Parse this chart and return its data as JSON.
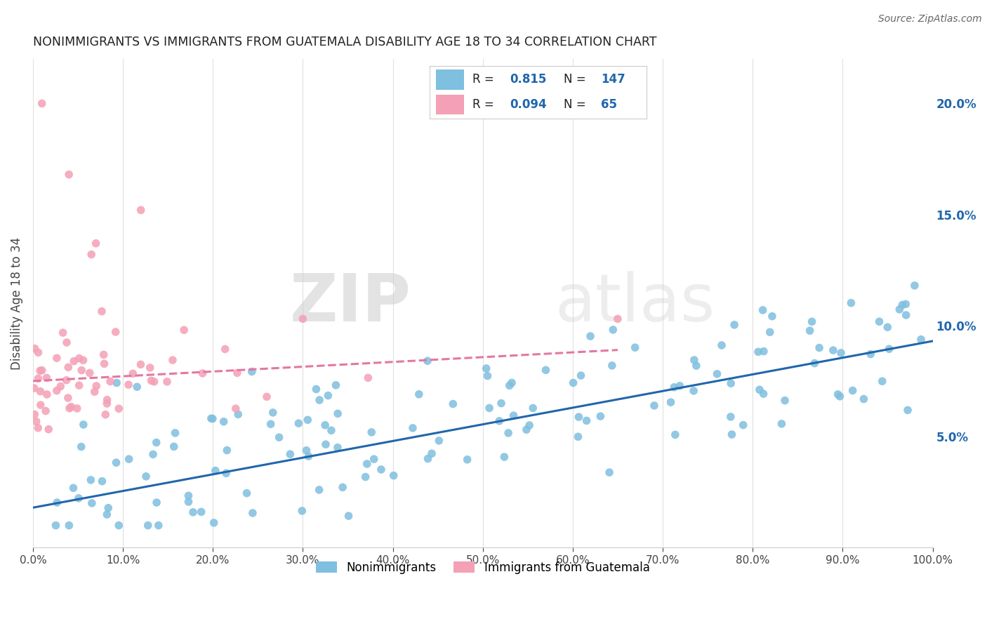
{
  "title": "NONIMMIGRANTS VS IMMIGRANTS FROM GUATEMALA DISABILITY AGE 18 TO 34 CORRELATION CHART",
  "source": "Source: ZipAtlas.com",
  "ylabel_label": "Disability Age 18 to 34",
  "watermark_zip": "ZIP",
  "watermark_atlas": "atlas",
  "blue_R": 0.815,
  "blue_N": 147,
  "pink_R": 0.094,
  "pink_N": 65,
  "blue_color": "#7fbfdf",
  "pink_color": "#f4a0b5",
  "blue_line_color": "#2166ac",
  "pink_line_color": "#e377a2",
  "xlim": [
    0,
    1.0
  ],
  "ylim": [
    0,
    0.22
  ],
  "xticks": [
    0.0,
    0.1,
    0.2,
    0.3,
    0.4,
    0.5,
    0.6,
    0.7,
    0.8,
    0.9,
    1.0
  ],
  "yticks": [
    0.05,
    0.1,
    0.15,
    0.2
  ],
  "blue_line_x": [
    0.0,
    1.0
  ],
  "blue_line_y": [
    0.018,
    0.093
  ],
  "pink_line_x": [
    0.0,
    0.65
  ],
  "pink_line_y": [
    0.075,
    0.089
  ],
  "legend_labels": [
    "Nonimmigrants",
    "Immigrants from Guatemala"
  ],
  "bg_color": "#ffffff",
  "grid_color": "#e0e0e0",
  "right_axis_color": "#2166ac"
}
